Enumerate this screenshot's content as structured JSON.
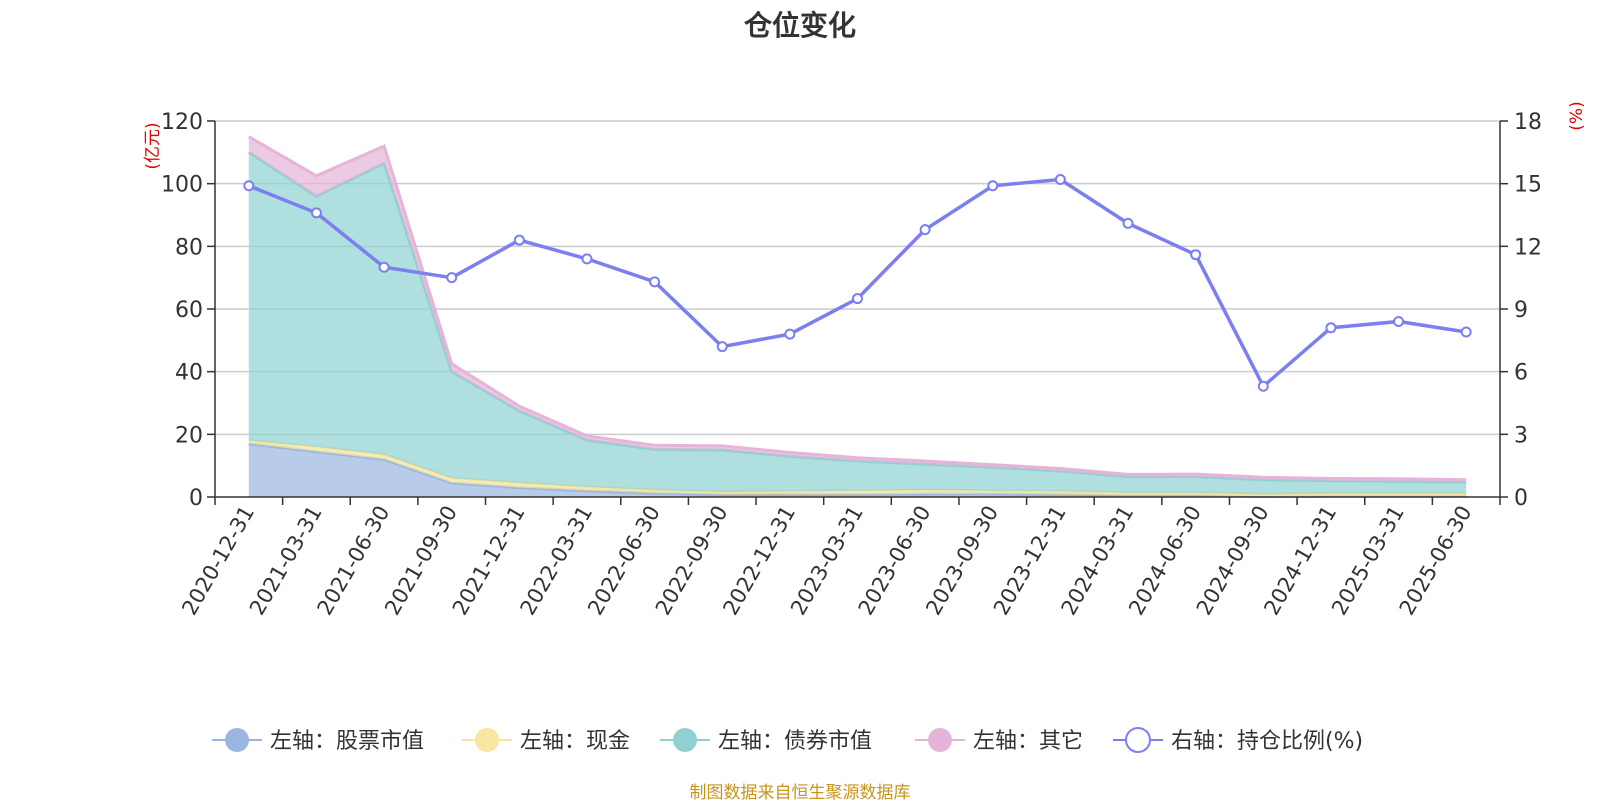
{
  "chart_data": {
    "type": "area",
    "title": "仓位变化",
    "left_axis": {
      "label": "(亿元)",
      "min": 0,
      "max": 120,
      "ticks": [
        0,
        20,
        40,
        60,
        80,
        100,
        120
      ]
    },
    "right_axis": {
      "label": "(%)",
      "min": 0,
      "max": 18,
      "ticks": [
        0,
        3,
        6,
        9,
        12,
        15,
        18
      ]
    },
    "categories": [
      "2020-12-31",
      "2021-03-31",
      "2021-06-30",
      "2021-09-30",
      "2021-12-31",
      "2022-03-31",
      "2022-06-30",
      "2022-09-30",
      "2022-12-31",
      "2023-03-31",
      "2023-06-30",
      "2023-09-30",
      "2023-12-31",
      "2024-03-31",
      "2024-06-30",
      "2024-09-30",
      "2024-12-31",
      "2025-03-31",
      "2025-06-30"
    ],
    "stacked_series": [
      {
        "name": "左轴：股票市值",
        "axis": "left",
        "color": "#9ab6e0",
        "values": [
          17,
          14.5,
          12,
          4.5,
          3,
          2,
          1.2,
          0.8,
          0.8,
          0.8,
          1.0,
          1.0,
          0.8,
          0.5,
          0.5,
          0.2,
          0.3,
          0.3,
          0.3
        ]
      },
      {
        "name": "左轴：现金",
        "axis": "left",
        "color": "#f7e5a0",
        "values": [
          1,
          1.5,
          1.5,
          1.5,
          1.5,
          1.2,
          1.0,
          0.8,
          1.0,
          1.2,
          1.2,
          1.0,
          1.0,
          0.8,
          0.8,
          0.6,
          0.8,
          0.8,
          0.8
        ]
      },
      {
        "name": "左轴：债券市值",
        "axis": "left",
        "color": "#8fd1d1",
        "values": [
          92,
          80,
          93,
          34,
          23,
          15,
          13,
          13.4,
          11.2,
          9.5,
          8.3,
          7.5,
          6.5,
          5.2,
          5.2,
          4.7,
          4.1,
          3.9,
          3.6
        ]
      },
      {
        "name": "左轴：其它",
        "axis": "left",
        "color": "#e6b4d9",
        "values": [
          5,
          6.5,
          5.5,
          2.5,
          1.5,
          1.3,
          1.3,
          1.3,
          1.2,
          1.0,
          1.0,
          0.8,
          0.8,
          0.7,
          0.8,
          0.8,
          0.7,
          0.8,
          0.8
        ]
      }
    ],
    "line_series": {
      "name": "右轴：持仓比例(%)",
      "axis": "right",
      "color": "#7b7ff0",
      "values": [
        14.9,
        13.6,
        11.0,
        10.5,
        12.3,
        11.4,
        10.3,
        7.2,
        7.8,
        9.5,
        12.8,
        14.9,
        15.2,
        13.1,
        11.6,
        5.3,
        8.1,
        8.4,
        7.9
      ]
    },
    "legend_position": "bottom",
    "grid": true
  },
  "source": "制图数据来自恒生聚源数据库"
}
